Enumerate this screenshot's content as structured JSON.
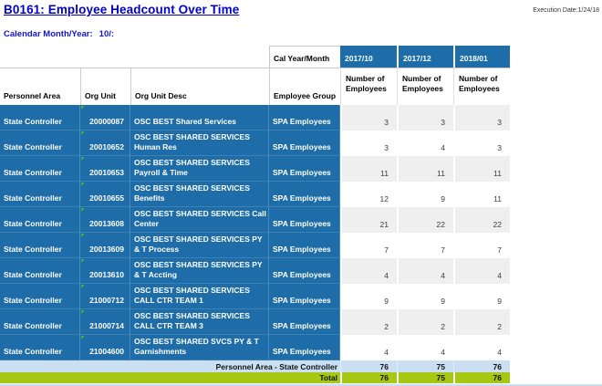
{
  "page": {
    "title": "B0161: Employee Headcount Over Time",
    "execution_date": "Execution Date:1/24/18",
    "filter_label": "Calendar Month/Year:",
    "filter_value": "10/:"
  },
  "colors": {
    "title_blue": "#0000cd",
    "row_blue": "#1e6da9",
    "alt_gray": "#efefef",
    "subtotal_blue": "#cbdff3",
    "total_green": "#a6c813",
    "indicator_green": "#3fae49"
  },
  "table": {
    "corner_label": "Cal Year/Month",
    "columns": {
      "personnel_area": "Personnel Area",
      "org_unit": "Org Unit",
      "org_unit_desc": "Org Unit Desc",
      "employee_group": "Employee Group",
      "measure": "Number of Employees"
    },
    "periods": [
      "2017/10",
      "2017/12",
      "2018/01"
    ],
    "rows": [
      {
        "personnel_area": "State Controller",
        "org_unit": "20000087",
        "org_unit_desc": "OSC BEST Shared Services",
        "employee_group": "SPA Employees",
        "values": [
          3,
          3,
          3
        ]
      },
      {
        "personnel_area": "State Controller",
        "org_unit": "20010652",
        "org_unit_desc": "OSC BEST SHARED SERVICES Human Res",
        "employee_group": "SPA Employees",
        "values": [
          3,
          4,
          3
        ]
      },
      {
        "personnel_area": "State Controller",
        "org_unit": "20010653",
        "org_unit_desc": "OSC BEST SHARED SERVICES Payroll & Time",
        "employee_group": "SPA Employees",
        "values": [
          11,
          11,
          11
        ]
      },
      {
        "personnel_area": "State Controller",
        "org_unit": "20010655",
        "org_unit_desc": "OSC BEST SHARED SERVICES Benefits",
        "employee_group": "SPA Employees",
        "values": [
          12,
          9,
          11
        ]
      },
      {
        "personnel_area": "State Controller",
        "org_unit": "20013608",
        "org_unit_desc": "OSC BEST SHARED SERVICES Call Center",
        "employee_group": "SPA Employees",
        "values": [
          21,
          22,
          22
        ]
      },
      {
        "personnel_area": "State Controller",
        "org_unit": "20013609",
        "org_unit_desc": "OSC BEST SHARED SERVICES PY & T Process",
        "employee_group": "SPA Employees",
        "values": [
          7,
          7,
          7
        ]
      },
      {
        "personnel_area": "State Controller",
        "org_unit": "20013610",
        "org_unit_desc": "OSC BEST SHARED SERVICES PY & T Accting",
        "employee_group": "SPA Employees",
        "values": [
          4,
          4,
          4
        ]
      },
      {
        "personnel_area": "State Controller",
        "org_unit": "21000712",
        "org_unit_desc": "OSC BEST SHARED SERVICES CALL CTR TEAM 1",
        "employee_group": "SPA Employees",
        "values": [
          9,
          9,
          9
        ]
      },
      {
        "personnel_area": "State Controller",
        "org_unit": "21000714",
        "org_unit_desc": "OSC BEST SHARED SERVICES CALL CTR TEAM 3",
        "employee_group": "SPA Employees",
        "values": [
          2,
          2,
          2
        ]
      },
      {
        "personnel_area": "State Controller",
        "org_unit": "21004600",
        "org_unit_desc": "OSC BEST SHARED SVCS PY & T Garnishments",
        "employee_group": "SPA Employees",
        "values": [
          4,
          4,
          4
        ]
      }
    ],
    "subtotal": {
      "label": "Personnel Area - State Controller",
      "values": [
        76,
        75,
        76
      ]
    },
    "total": {
      "label": "Total",
      "values": [
        76,
        75,
        76
      ]
    }
  }
}
